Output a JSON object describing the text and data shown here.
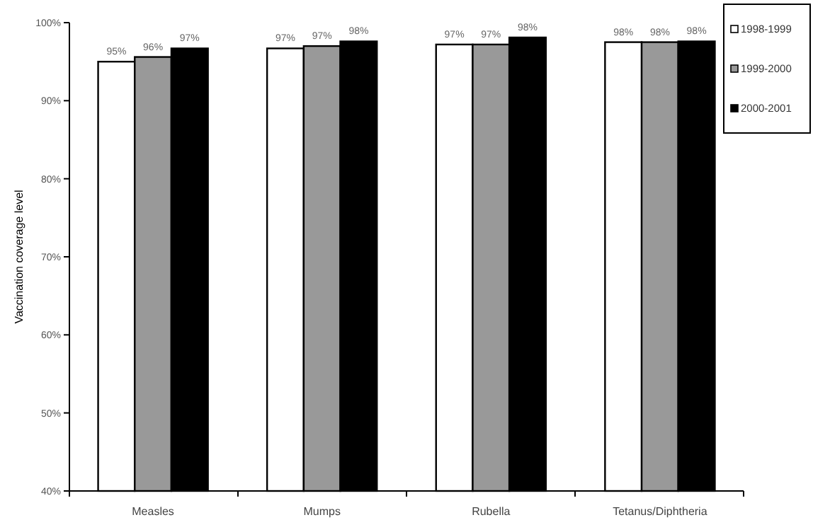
{
  "chart_data": {
    "type": "bar",
    "ylabel": "Vaccination coverage level",
    "categories": [
      "Measles",
      "Mumps",
      "Rubella",
      "Tetanus/Diphtheria"
    ],
    "series": [
      {
        "name": "1998-1999",
        "color": "#ffffff",
        "values": [
          95.0,
          96.7,
          97.2,
          97.5
        ],
        "value_labels": [
          "95%",
          "97%",
          "97%",
          "98%"
        ]
      },
      {
        "name": "1999-2000",
        "color": "#999999",
        "values": [
          95.6,
          97.0,
          97.2,
          97.5
        ],
        "value_labels": [
          "96%",
          "97%",
          "97%",
          "98%"
        ]
      },
      {
        "name": "2000-2001",
        "color": "#000000",
        "values": [
          96.7,
          97.6,
          98.1,
          97.6
        ],
        "value_labels": [
          "97%",
          "98%",
          "98%",
          "98%"
        ]
      }
    ],
    "ylim": [
      40,
      100
    ],
    "yticks": [
      {
        "value": 40,
        "label": "40%"
      },
      {
        "value": 50,
        "label": "50%"
      },
      {
        "value": 60,
        "label": "60%"
      },
      {
        "value": 70,
        "label": "70%"
      },
      {
        "value": 80,
        "label": "80%"
      },
      {
        "value": 90,
        "label": "90%"
      },
      {
        "value": 100,
        "label": "100%"
      }
    ],
    "grid": false,
    "legend": "top right"
  }
}
